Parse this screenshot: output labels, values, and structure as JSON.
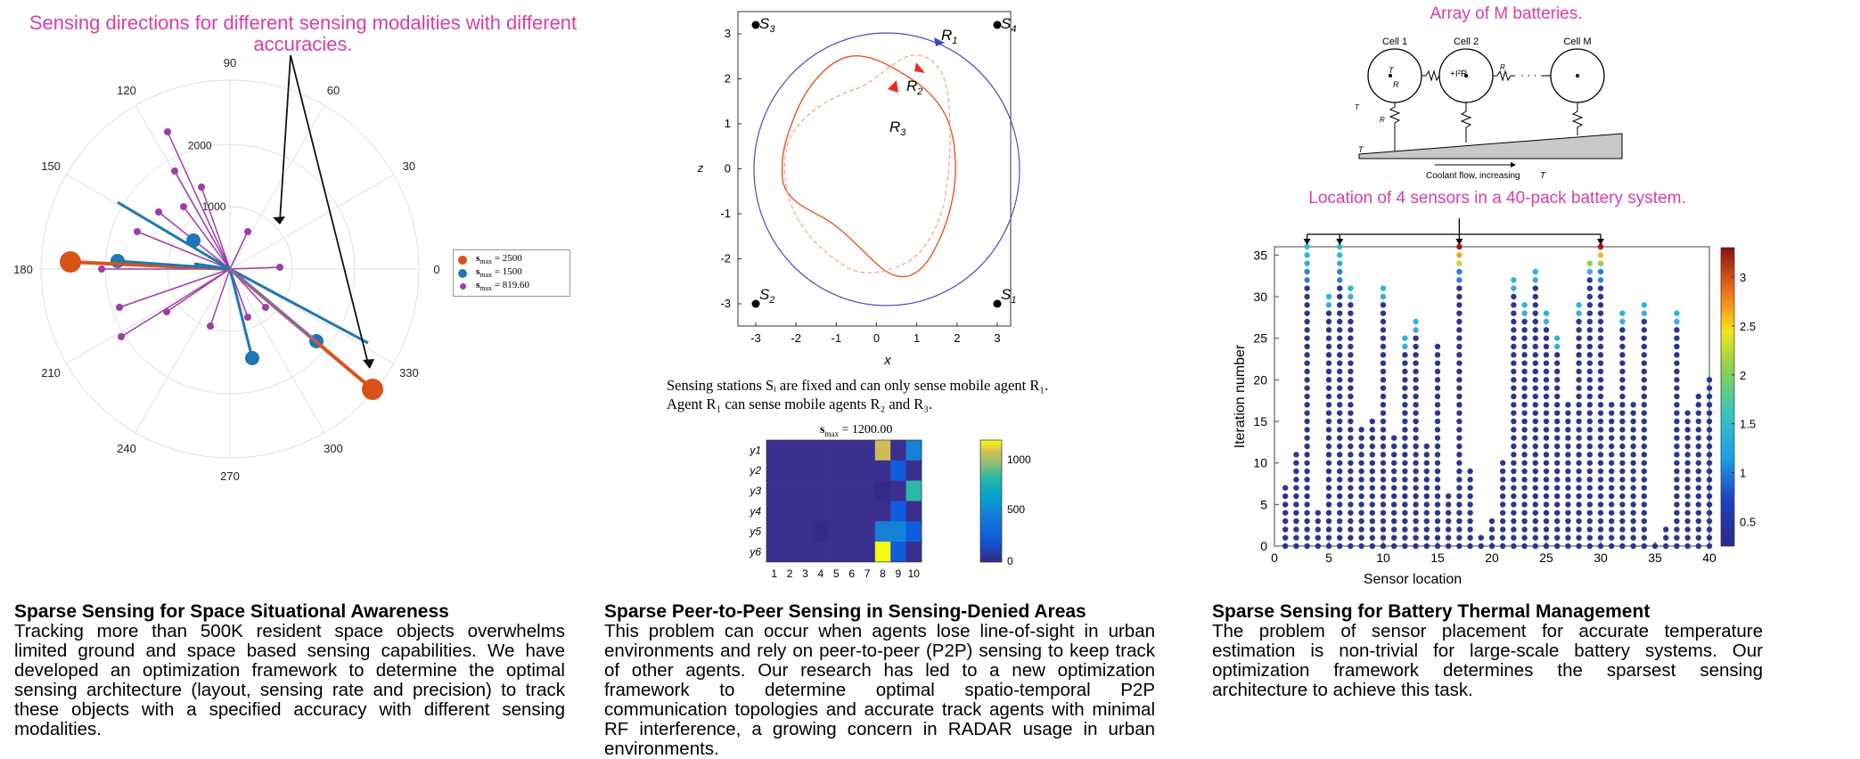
{
  "panels": [
    {
      "title": "Sparse Sensing for Space Situational Awareness",
      "body": "Tracking more than 500K resident space objects overwhelms limited ground and space based sensing capabilities. We have developed an optimization framework to determine the optimal sensing architecture (layout, sensing rate and precision) to track these objects with a specified accuracy with different sensing modalities."
    },
    {
      "title": "Sparse Peer-to-Peer Sensing in Sensing-Denied Areas",
      "body": "This problem can occur when agents lose line-of-sight in urban environments and rely on peer-to-peer (P2P) sensing to keep track of other agents. Our research has led to a new optimization framework to determine optimal spatio-temporal P2P communication topologies and accurate track agents with minimal RF interference, a growing concern in RADAR usage in urban environments."
    },
    {
      "title": "Sparse Sensing for Battery Thermal Management",
      "body": "The problem of sensor placement for accurate temperature estimation is non-trivial for large-scale battery systems. Our optimization framework determines the sparsest sensing architecture to achieve this task."
    }
  ],
  "polar": {
    "annotation": "Sensing directions for different sensing modalities with different accuracies.",
    "angle_ticks": [
      "0",
      "30",
      "60",
      "90",
      "120",
      "150",
      "180",
      "210",
      "240",
      "270",
      "300",
      "330"
    ],
    "radial_ticks": [
      "1000",
      "2000"
    ],
    "legend": [
      {
        "label": "s",
        "sub": "max",
        "value": " = 2500",
        "color": "#d95319"
      },
      {
        "label": "s",
        "sub": "max",
        "value": " = 1500",
        "color": "#1f77b4"
      },
      {
        "label": "s",
        "sub": "max",
        "value": " = 819.60",
        "color": "#a03ca6"
      }
    ],
    "colors": {
      "c2500": "#d95319",
      "c1500": "#1f77b4",
      "c819": "#a03ca6"
    }
  },
  "p2p": {
    "stations": [
      "S3",
      "S4",
      "S2",
      "S1"
    ],
    "agents": [
      "R1",
      "R2",
      "R3"
    ],
    "xlabel": "x",
    "ylabel": "z",
    "xticks": [
      "-3",
      "-2",
      "-1",
      "0",
      "1",
      "2",
      "3"
    ],
    "yticks": [
      "3",
      "2",
      "1",
      "0",
      "-1",
      "-2",
      "-3"
    ],
    "caption_line1": "Sensing stations Sᵢ are fixed and can only sense mobile agent R₁.",
    "caption_line2": "Agent R₁ can sense mobile agents R₂ and R₃."
  },
  "heatmap": {
    "title": "s",
    "title_sub": "max",
    "title_value": " = 1200.00",
    "rows": [
      "y1",
      "y2",
      "y3",
      "y4",
      "y5",
      "y6"
    ],
    "cols": [
      "1",
      "2",
      "3",
      "4",
      "5",
      "6",
      "7",
      "8",
      "9",
      "10"
    ],
    "colorbar_ticks": [
      "1000",
      "500",
      "0"
    ]
  },
  "battery": {
    "top_label": "Array of M batteries.",
    "cells": [
      "Cell 1",
      "Cell 2",
      "Cell M"
    ],
    "coolant_label": "Coolant flow, increasing",
    "sensors_label": "Location of 4 sensors in a 40-pack battery system.",
    "xlabel": "Sensor location",
    "ylabel": "Iteration number",
    "xticks": [
      "0",
      "5",
      "10",
      "15",
      "20",
      "25",
      "30",
      "35",
      "40"
    ],
    "yticks": [
      "35",
      "30",
      "25",
      "20",
      "15",
      "10",
      "5",
      "0"
    ],
    "colorbar_ticks": [
      "3",
      "2.5",
      "2",
      "1.5",
      "1",
      "0.5"
    ]
  },
  "chart_data": [
    {
      "type": "scatter",
      "title": "",
      "xlabel": "Sensor location",
      "ylabel": "Iteration number",
      "xlim": [
        0,
        40
      ],
      "ylim": [
        0,
        36
      ],
      "x": [
        1,
        2,
        3,
        4,
        5,
        6,
        7,
        8,
        9,
        10,
        11,
        12,
        13,
        14,
        15,
        16,
        17,
        18,
        19,
        20,
        21,
        22,
        23,
        24,
        25,
        26,
        27,
        28,
        29,
        30,
        31,
        32,
        33,
        34,
        35,
        36,
        37,
        38,
        39,
        40
      ],
      "y_max": [
        7,
        11,
        36,
        4,
        30,
        36,
        31,
        14,
        15,
        31,
        13,
        25,
        27,
        12,
        24,
        6,
        36,
        9,
        1,
        3,
        10,
        32,
        29,
        33,
        28,
        25,
        17,
        29,
        34,
        36,
        17,
        28,
        17,
        29,
        0,
        2,
        28,
        16,
        18,
        20
      ],
      "sensor_locations": [
        3,
        6,
        17,
        30
      ],
      "colorbar": [
        0.5,
        3
      ]
    },
    {
      "type": "heatmap",
      "title": "smax = 1200.00",
      "rows": [
        "y1",
        "y2",
        "y3",
        "y4",
        "y5",
        "y6"
      ],
      "cols": [
        1,
        2,
        3,
        4,
        5,
        6,
        7,
        8,
        9,
        10
      ],
      "values": [
        [
          0,
          0,
          0,
          0,
          0,
          0,
          0,
          1100,
          0,
          450
        ],
        [
          0,
          0,
          0,
          0,
          0,
          0,
          0,
          0,
          150,
          0
        ],
        [
          0,
          0,
          0,
          0,
          0,
          0,
          0,
          100,
          0,
          750
        ],
        [
          0,
          0,
          0,
          0,
          0,
          0,
          0,
          0,
          250,
          0
        ],
        [
          0,
          0,
          0,
          100,
          0,
          0,
          0,
          450,
          500,
          300
        ],
        [
          0,
          0,
          0,
          0,
          0,
          0,
          0,
          1150,
          150,
          0
        ]
      ],
      "colorbar": [
        0,
        1200
      ]
    }
  ]
}
